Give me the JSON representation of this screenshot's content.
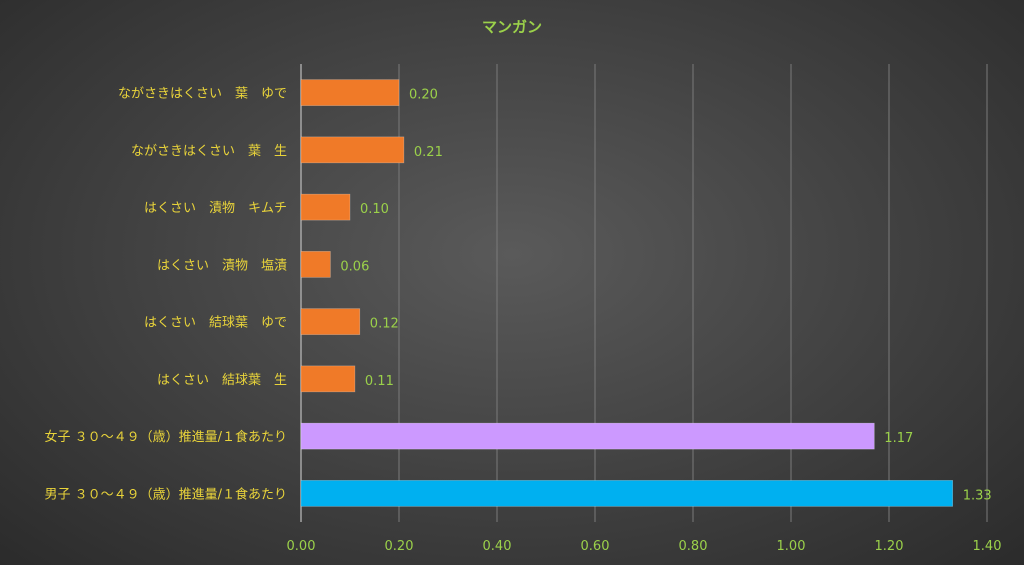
{
  "chart_data": {
    "type": "bar",
    "orientation": "horizontal",
    "title": "マンガン",
    "categories": [
      "ながさきはくさい　葉　ゆで",
      "ながさきはくさい　葉　生",
      "はくさい　漬物　キムチ",
      "はくさい　漬物　塩漬",
      "はくさい　結球葉　ゆで",
      "はくさい　結球葉　生",
      "女子 ３０～４９（歳）推進量/１食あたり",
      "男子 ３０～４９（歳）推進量/１食あたり"
    ],
    "values": [
      0.2,
      0.21,
      0.1,
      0.06,
      0.12,
      0.11,
      1.17,
      1.33
    ],
    "value_labels": [
      "0.20",
      "0.21",
      "0.10",
      "0.06",
      "0.12",
      "0.11",
      "1.17",
      "1.33"
    ],
    "colors": [
      "#f07a28",
      "#f07a28",
      "#f07a28",
      "#f07a28",
      "#f07a28",
      "#f07a28",
      "#cc99ff",
      "#00b0f0"
    ],
    "xlim": [
      0,
      1.4
    ],
    "xticks": [
      "0.00",
      "0.20",
      "0.40",
      "0.60",
      "0.80",
      "1.00",
      "1.20",
      "1.40"
    ],
    "grid": true,
    "legend": "none"
  }
}
